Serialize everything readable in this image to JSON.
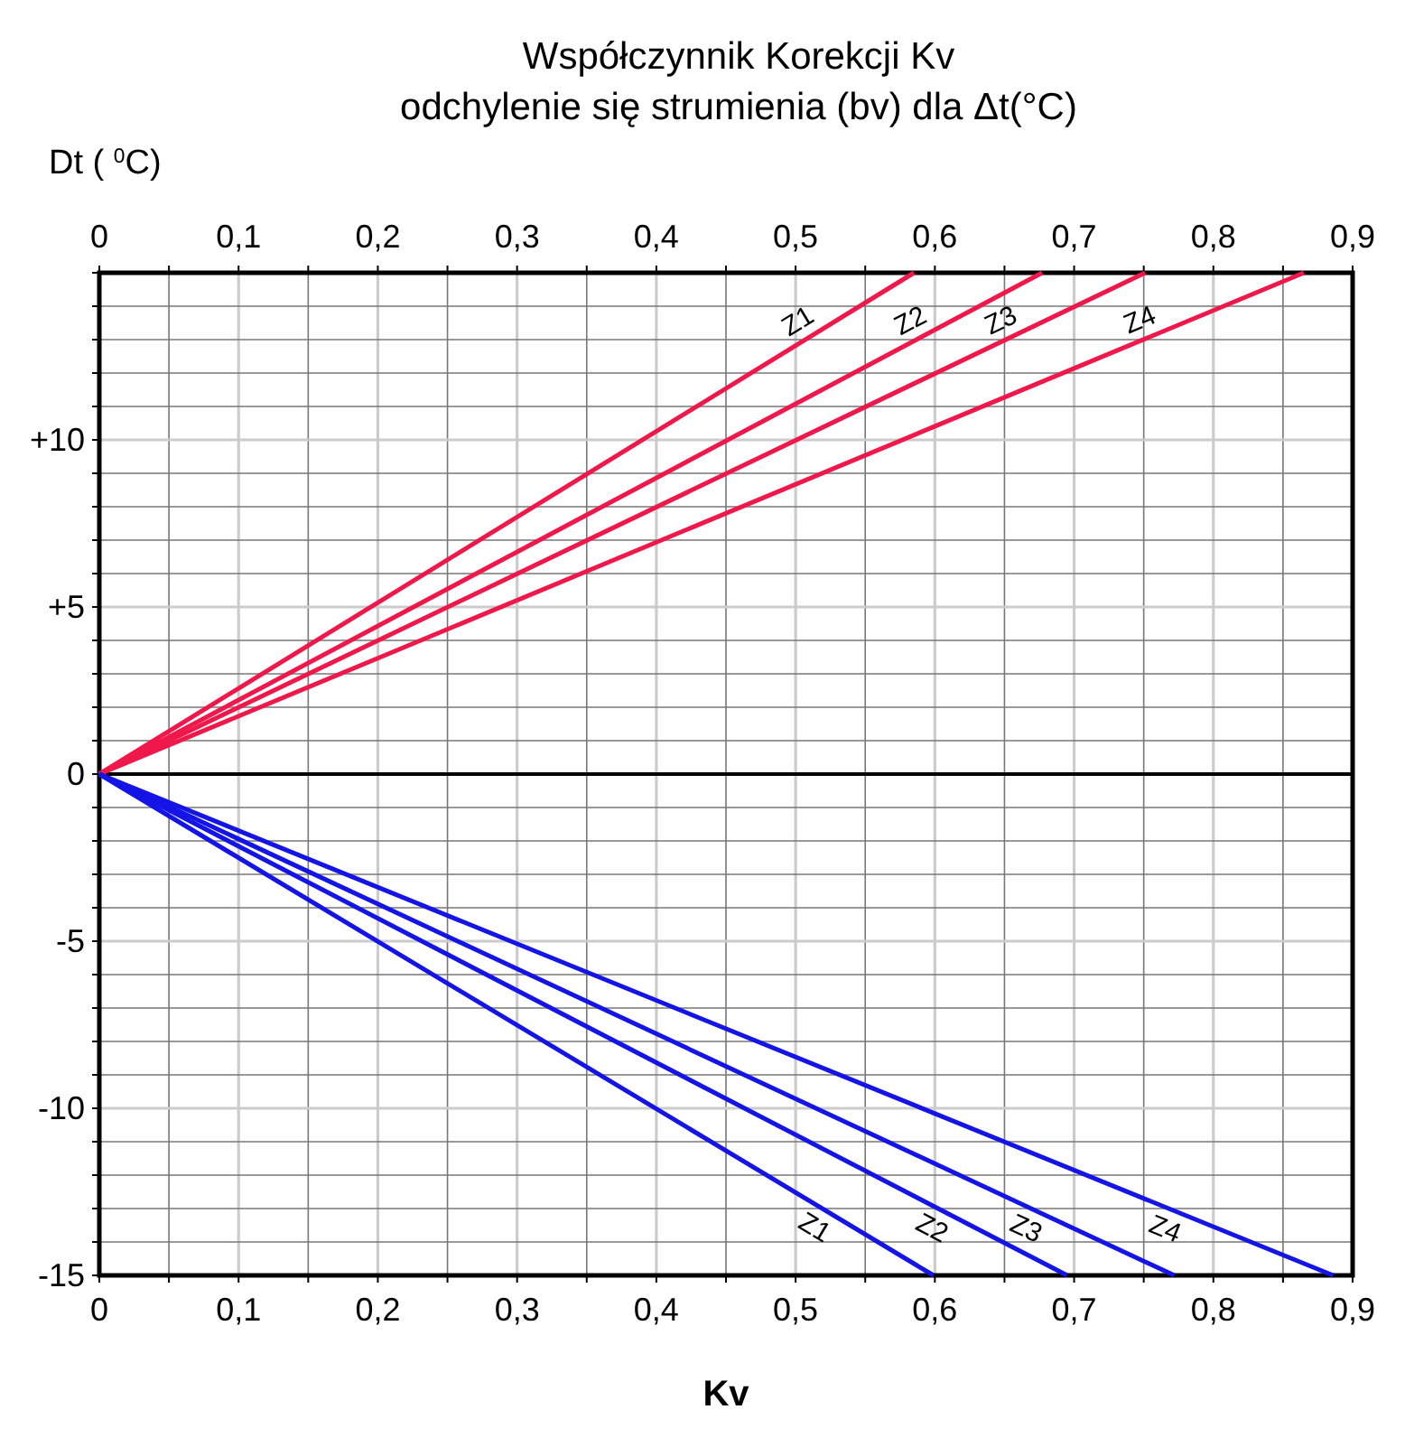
{
  "chart_data": {
    "type": "line",
    "title": "Współczynnik Korekcji Kv",
    "subtitle": "odchylenie się strumienia (bv) dla Δt(°C)",
    "xlabel": "Kv",
    "ylabel": "Dt ( $^{0}$C)",
    "xlim": [
      0,
      0.9
    ],
    "ylim": [
      -15,
      15
    ],
    "xticks": [
      {
        "value": 0,
        "label": "0"
      },
      {
        "value": 0.05,
        "label": null
      },
      {
        "value": 0.1,
        "label": "0,1"
      },
      {
        "value": 0.15,
        "label": null
      },
      {
        "value": 0.2,
        "label": "0,2"
      },
      {
        "value": 0.25,
        "label": null
      },
      {
        "value": 0.3,
        "label": "0,3"
      },
      {
        "value": 0.35,
        "label": null
      },
      {
        "value": 0.4,
        "label": "0,4"
      },
      {
        "value": 0.45,
        "label": null
      },
      {
        "value": 0.5,
        "label": "0,5"
      },
      {
        "value": 0.55,
        "label": null
      },
      {
        "value": 0.6,
        "label": "0,6"
      },
      {
        "value": 0.65,
        "label": null
      },
      {
        "value": 0.7,
        "label": "0,7"
      },
      {
        "value": 0.75,
        "label": null
      },
      {
        "value": 0.8,
        "label": "0,8"
      },
      {
        "value": 0.85,
        "label": null
      },
      {
        "value": 0.9,
        "label": "0,9"
      }
    ],
    "x2lim": [
      0,
      0.9
    ],
    "x2ticks": [
      {
        "value": 0,
        "label": "0"
      },
      {
        "value": 0.05,
        "label": null
      },
      {
        "value": 0.1,
        "label": "0,1"
      },
      {
        "value": 0.15,
        "label": null
      },
      {
        "value": 0.2,
        "label": "0,2"
      },
      {
        "value": 0.25,
        "label": null
      },
      {
        "value": 0.3,
        "label": "0,3"
      },
      {
        "value": 0.35,
        "label": null
      },
      {
        "value": 0.4,
        "label": "0,4"
      },
      {
        "value": 0.45,
        "label": null
      },
      {
        "value": 0.5,
        "label": "0,5"
      },
      {
        "value": 0.55,
        "label": null
      },
      {
        "value": 0.6,
        "label": "0,6"
      },
      {
        "value": 0.65,
        "label": null
      },
      {
        "value": 0.7,
        "label": "0,7"
      },
      {
        "value": 0.75,
        "label": null
      },
      {
        "value": 0.8,
        "label": "0,8"
      },
      {
        "value": 0.85,
        "label": null
      },
      {
        "value": 0.9,
        "label": "0,9"
      }
    ],
    "yticks": [
      {
        "value": -15,
        "label": "-15"
      },
      {
        "value": -14,
        "label": null
      },
      {
        "value": -13,
        "label": null
      },
      {
        "value": -12,
        "label": null
      },
      {
        "value": -11,
        "label": null
      },
      {
        "value": -10,
        "label": "-10"
      },
      {
        "value": -9,
        "label": null
      },
      {
        "value": -8,
        "label": null
      },
      {
        "value": -7,
        "label": null
      },
      {
        "value": -6,
        "label": null
      },
      {
        "value": -5,
        "label": "-5"
      },
      {
        "value": -4,
        "label": null
      },
      {
        "value": -3,
        "label": null
      },
      {
        "value": -2,
        "label": null
      },
      {
        "value": -1,
        "label": null
      },
      {
        "value": 0,
        "label": "0"
      },
      {
        "value": 1,
        "label": null
      },
      {
        "value": 2,
        "label": null
      },
      {
        "value": 3,
        "label": null
      },
      {
        "value": 4,
        "label": null
      },
      {
        "value": 5,
        "label": "+5"
      },
      {
        "value": 6,
        "label": null
      },
      {
        "value": 7,
        "label": null
      },
      {
        "value": 8,
        "label": null
      },
      {
        "value": 9,
        "label": null
      },
      {
        "value": 10,
        "label": "+10"
      },
      {
        "value": 11,
        "label": null
      },
      {
        "value": 12,
        "label": null
      },
      {
        "value": 13,
        "label": null
      },
      {
        "value": 14,
        "label": null
      },
      {
        "value": 15,
        "label": null
      }
    ],
    "grid": true,
    "line_style": "solid",
    "marker": "none",
    "ref_lines": [
      {
        "axis": "y",
        "value": 0,
        "color": "#000000"
      }
    ],
    "series": [
      {
        "name": "Z1",
        "color": "#f0184a",
        "x": [
          0,
          0.585
        ],
        "values": [
          0,
          15
        ]
      },
      {
        "name": "Z2",
        "color": "#f0184a",
        "x": [
          0,
          0.677
        ],
        "values": [
          0,
          15
        ]
      },
      {
        "name": "Z3",
        "color": "#f0184a",
        "x": [
          0,
          0.751
        ],
        "values": [
          0,
          15
        ]
      },
      {
        "name": "Z4",
        "color": "#f0184a",
        "x": [
          0,
          0.865
        ],
        "values": [
          0,
          15
        ]
      },
      {
        "name": "Z1",
        "color": "#1414e6",
        "x": [
          0,
          0.599
        ],
        "values": [
          0,
          -15
        ]
      },
      {
        "name": "Z2",
        "color": "#1414e6",
        "x": [
          0,
          0.695
        ],
        "values": [
          0,
          -15
        ]
      },
      {
        "name": "Z3",
        "color": "#1414e6",
        "x": [
          0,
          0.772
        ],
        "values": [
          0,
          -15
        ]
      },
      {
        "name": "Z4",
        "color": "#1414e6",
        "x": [
          0,
          0.886
        ],
        "values": [
          0,
          -15
        ]
      }
    ]
  }
}
